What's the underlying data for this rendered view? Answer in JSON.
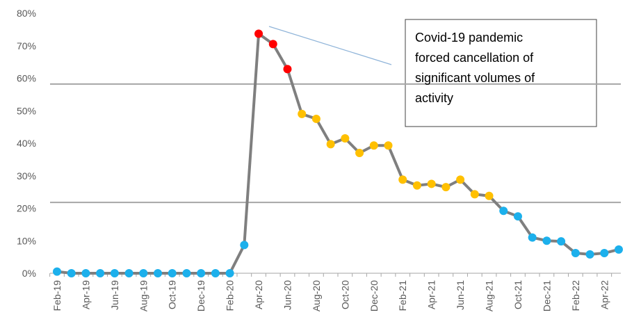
{
  "chart_data": {
    "type": "line",
    "categories": [
      "Feb-19",
      null,
      "Apr-19",
      null,
      "Jun-19",
      null,
      "Aug-19",
      null,
      "Oct-19",
      null,
      "Dec-19",
      null,
      "Feb-20",
      null,
      "Apr-20",
      null,
      "Jun-20",
      null,
      "Aug-20",
      null,
      "Oct-20",
      null,
      "Dec-20",
      null,
      "Feb-21",
      null,
      "Apr-21",
      null,
      "Jun-21",
      null,
      "Aug-21",
      null,
      "Oct-21",
      null,
      "Dec-21",
      null,
      "Feb-22",
      null,
      "Apr-22",
      null
    ],
    "values": [
      0.5,
      0,
      0,
      0,
      0,
      0,
      0,
      0,
      0,
      0,
      0,
      0,
      0,
      8.7,
      73.7,
      70.5,
      62.8,
      49,
      47.5,
      39.7,
      41.5,
      37,
      39.3,
      39.3,
      28.8,
      27,
      27.5,
      26.5,
      28.8,
      24.3,
      23.8,
      19.2,
      17.5,
      11,
      10,
      9.8,
      6.2,
      5.8,
      6.2,
      7.3
    ],
    "color": "#7f7f7f",
    "point_colors": [
      "#1cb0ec",
      "#1cb0ec",
      "#1cb0ec",
      "#1cb0ec",
      "#1cb0ec",
      "#1cb0ec",
      "#1cb0ec",
      "#1cb0ec",
      "#1cb0ec",
      "#1cb0ec",
      "#1cb0ec",
      "#1cb0ec",
      "#1cb0ec",
      "#1cb0ec",
      "#ff0000",
      "#ff0000",
      "#ff0000",
      "#ffc000",
      "#ffc000",
      "#ffc000",
      "#ffc000",
      "#ffc000",
      "#ffc000",
      "#ffc000",
      "#ffc000",
      "#ffc000",
      "#ffc000",
      "#ffc000",
      "#ffc000",
      "#ffc000",
      "#ffc000",
      "#1cb0ec",
      "#1cb0ec",
      "#1cb0ec",
      "#1cb0ec",
      "#1cb0ec",
      "#1cb0ec",
      "#1cb0ec",
      "#1cb0ec",
      "#1cb0ec"
    ],
    "hlines": [
      58.2,
      21.8
    ],
    "hline_color": "#a6a6a6",
    "ylim": [
      0,
      80
    ],
    "yticks": [
      {
        "value": 0,
        "label": "0%"
      },
      {
        "value": 10,
        "label": "10%"
      },
      {
        "value": 20,
        "label": "20%"
      },
      {
        "value": 30,
        "label": "30%"
      },
      {
        "value": 40,
        "label": "40%"
      },
      {
        "value": 50,
        "label": "50%"
      },
      {
        "value": 60,
        "label": "60%"
      },
      {
        "value": 70,
        "label": "70%"
      },
      {
        "value": 80,
        "label": "80%"
      }
    ],
    "annotation": {
      "lines": [
        "Covid-19 pandemic",
        "forced cancellation of",
        "significant  volumes of",
        "activity"
      ]
    }
  }
}
